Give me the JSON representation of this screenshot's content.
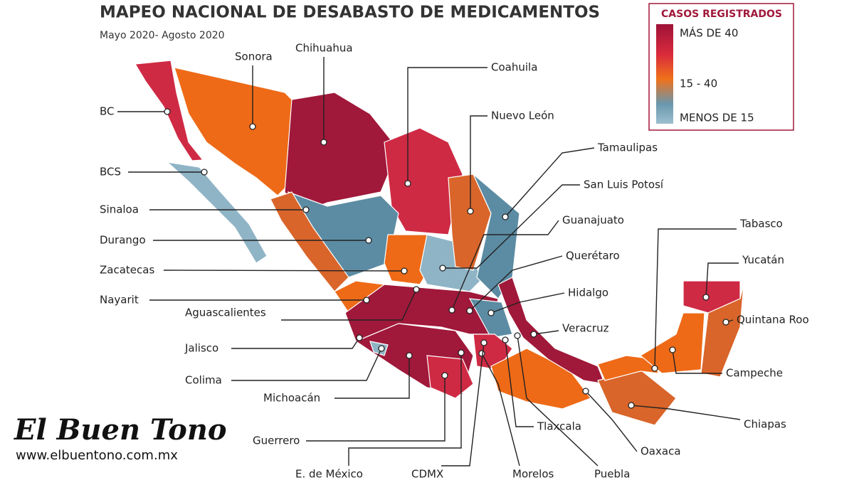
{
  "header": {
    "title": "MAPEO NACIONAL DE DESABASTO DE MEDICAMENTOS",
    "subtitle": "Mayo 2020- Agosto 2020"
  },
  "legend": {
    "title": "CASOS REGISTRADOS",
    "labels": [
      "MÁS DE 40",
      "15 - 40",
      "MENOS DE 15"
    ]
  },
  "states": [
    "BC",
    "Sonora",
    "Chihuahua",
    "Coahuila",
    "Nuevo León",
    "Tamaulipas",
    "San Luis Potosí",
    "Guanajuato",
    "Querétaro",
    "Hidalgo",
    "Veracruz",
    "Tabasco",
    "Yucatán",
    "Quintana Roo",
    "Campeche",
    "Chiapas",
    "Oaxaca",
    "Puebla",
    "Morelos",
    "Tlaxcala",
    "CDMX",
    "E. de México",
    "Guerrero",
    "Michoacán",
    "Colima",
    "Jalisco",
    "Aguascalientes",
    "Nayarit",
    "Zacatecas",
    "Durango",
    "Sinaloa",
    "BCS"
  ],
  "branding": {
    "name": "El Buen Tono",
    "url": "www.elbuentono.com.mx"
  }
}
